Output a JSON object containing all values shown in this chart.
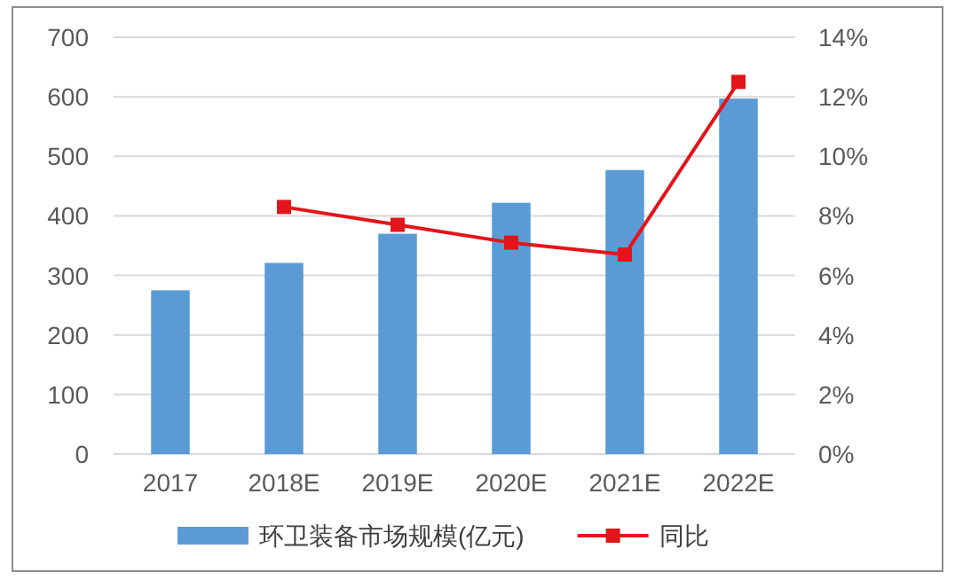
{
  "chart_data": {
    "type": "bar",
    "categories": [
      "2017",
      "2018E",
      "2019E",
      "2020E",
      "2021E",
      "2022E"
    ],
    "series": [
      {
        "name": "环卫装备市场规模(亿元)",
        "color": "#5b9bd5",
        "values": [
          275,
          321,
          370,
          422,
          477,
          597
        ]
      },
      {
        "name": "同比",
        "type": "line",
        "axis": "y2",
        "color": "#e3151a",
        "marker": "square",
        "values": [
          null,
          8.3,
          7.7,
          7.1,
          6.7,
          12.5
        ]
      }
    ],
    "ylim": [
      0,
      700
    ],
    "yticks": [
      0,
      100,
      200,
      300,
      400,
      500,
      600,
      700
    ],
    "y2lim": [
      0,
      14
    ],
    "y2ticks": [
      {
        "value": 0,
        "label": "0%"
      },
      {
        "value": 2,
        "label": "2%"
      },
      {
        "value": 4,
        "label": "4%"
      },
      {
        "value": 6,
        "label": "6%"
      },
      {
        "value": 8,
        "label": "8%"
      },
      {
        "value": 10,
        "label": "10%"
      },
      {
        "value": 12,
        "label": "12%"
      },
      {
        "value": 14,
        "label": "14%"
      }
    ],
    "grid": "y",
    "legend": "bottom"
  }
}
